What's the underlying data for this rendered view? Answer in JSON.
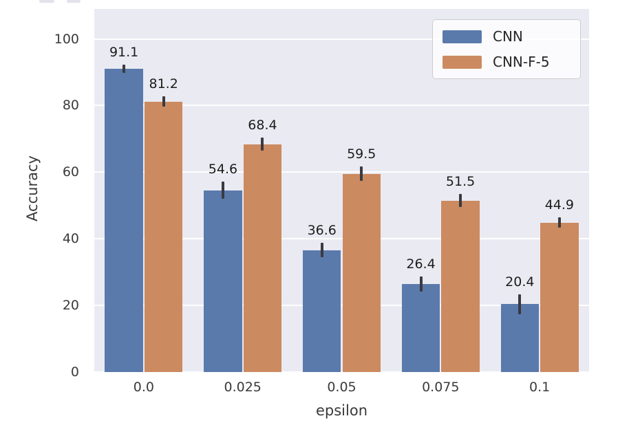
{
  "figure": {
    "background": "#ffffff",
    "plot_background": "#eaeaf2",
    "grid_color": "#ffffff",
    "errorbar_color": "#3a3a40"
  },
  "chart_data": {
    "type": "bar",
    "title": "",
    "xlabel": "epsilon",
    "ylabel": "Accuracy",
    "categories": [
      "0.0",
      "0.025",
      "0.05",
      "0.075",
      "0.1"
    ],
    "series": [
      {
        "name": "CNN",
        "color": "#5a7aac",
        "values": [
          91.1,
          54.6,
          36.6,
          26.4,
          20.4
        ],
        "errors": [
          1.2,
          2.5,
          2.2,
          2.2,
          3.0
        ]
      },
      {
        "name": "CNN-F-5",
        "color": "#cc8a60",
        "values": [
          81.2,
          68.4,
          59.5,
          51.5,
          44.9
        ],
        "errors": [
          1.6,
          2.0,
          2.2,
          2.0,
          1.5
        ]
      }
    ],
    "bar_value_labels": [
      "91.1",
      "54.6",
      "36.6",
      "26.4",
      "20.4",
      "81.2",
      "68.4",
      "59.5",
      "51.5",
      "44.9"
    ],
    "yticks": [
      0,
      20,
      40,
      60,
      80,
      100
    ],
    "ylim": [
      0,
      109
    ],
    "grid": true,
    "grid_axis": "y",
    "legend": {
      "position": "upper right",
      "entries": [
        "CNN",
        "CNN-F-5"
      ]
    }
  }
}
